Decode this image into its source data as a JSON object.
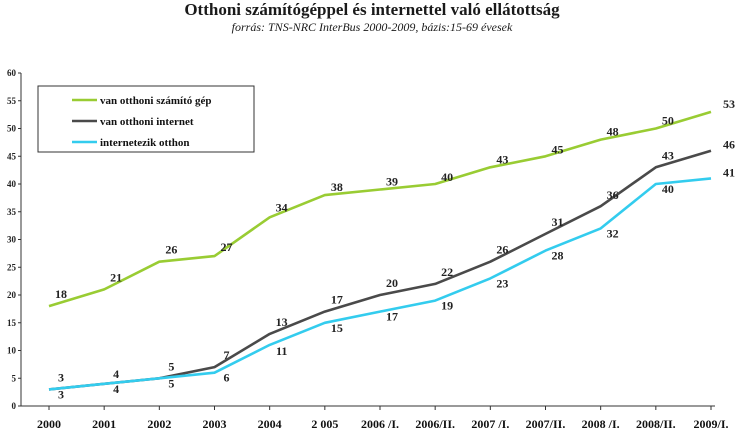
{
  "chart_data": {
    "type": "line",
    "title": "Otthoni számítógéppel és internettel való ellátottság",
    "subtitle": "forrás: TNS-NRC InterBus 2000-2009, bázis:15-69 évesek",
    "categories": [
      "2000",
      "2001",
      "2002",
      "2003",
      "2004",
      "2 005",
      "2006 /I.",
      "2006/II.",
      "2007 /I.",
      "2007/II.",
      "2008 /I.",
      "2008/II.",
      "2009/I."
    ],
    "ylim": [
      0,
      60
    ],
    "yticks": [
      0,
      5,
      10,
      15,
      20,
      25,
      30,
      35,
      40,
      45,
      50,
      55,
      60
    ],
    "grid": false,
    "legend_position": "top-left",
    "series": [
      {
        "name": "van otthoni számító gép",
        "color": "#99cc33",
        "values": [
          18,
          21,
          26,
          27,
          34,
          38,
          39,
          40,
          43,
          45,
          48,
          50,
          53
        ]
      },
      {
        "name": "van otthoni internet",
        "color": "#4a4a4a",
        "values": [
          3,
          4,
          5,
          7,
          13,
          17,
          20,
          22,
          26,
          31,
          36,
          43,
          46
        ]
      },
      {
        "name": "internetezik otthon",
        "color": "#33ccee",
        "values": [
          3,
          4,
          5,
          6,
          11,
          15,
          17,
          19,
          23,
          28,
          32,
          40,
          41
        ]
      }
    ]
  }
}
